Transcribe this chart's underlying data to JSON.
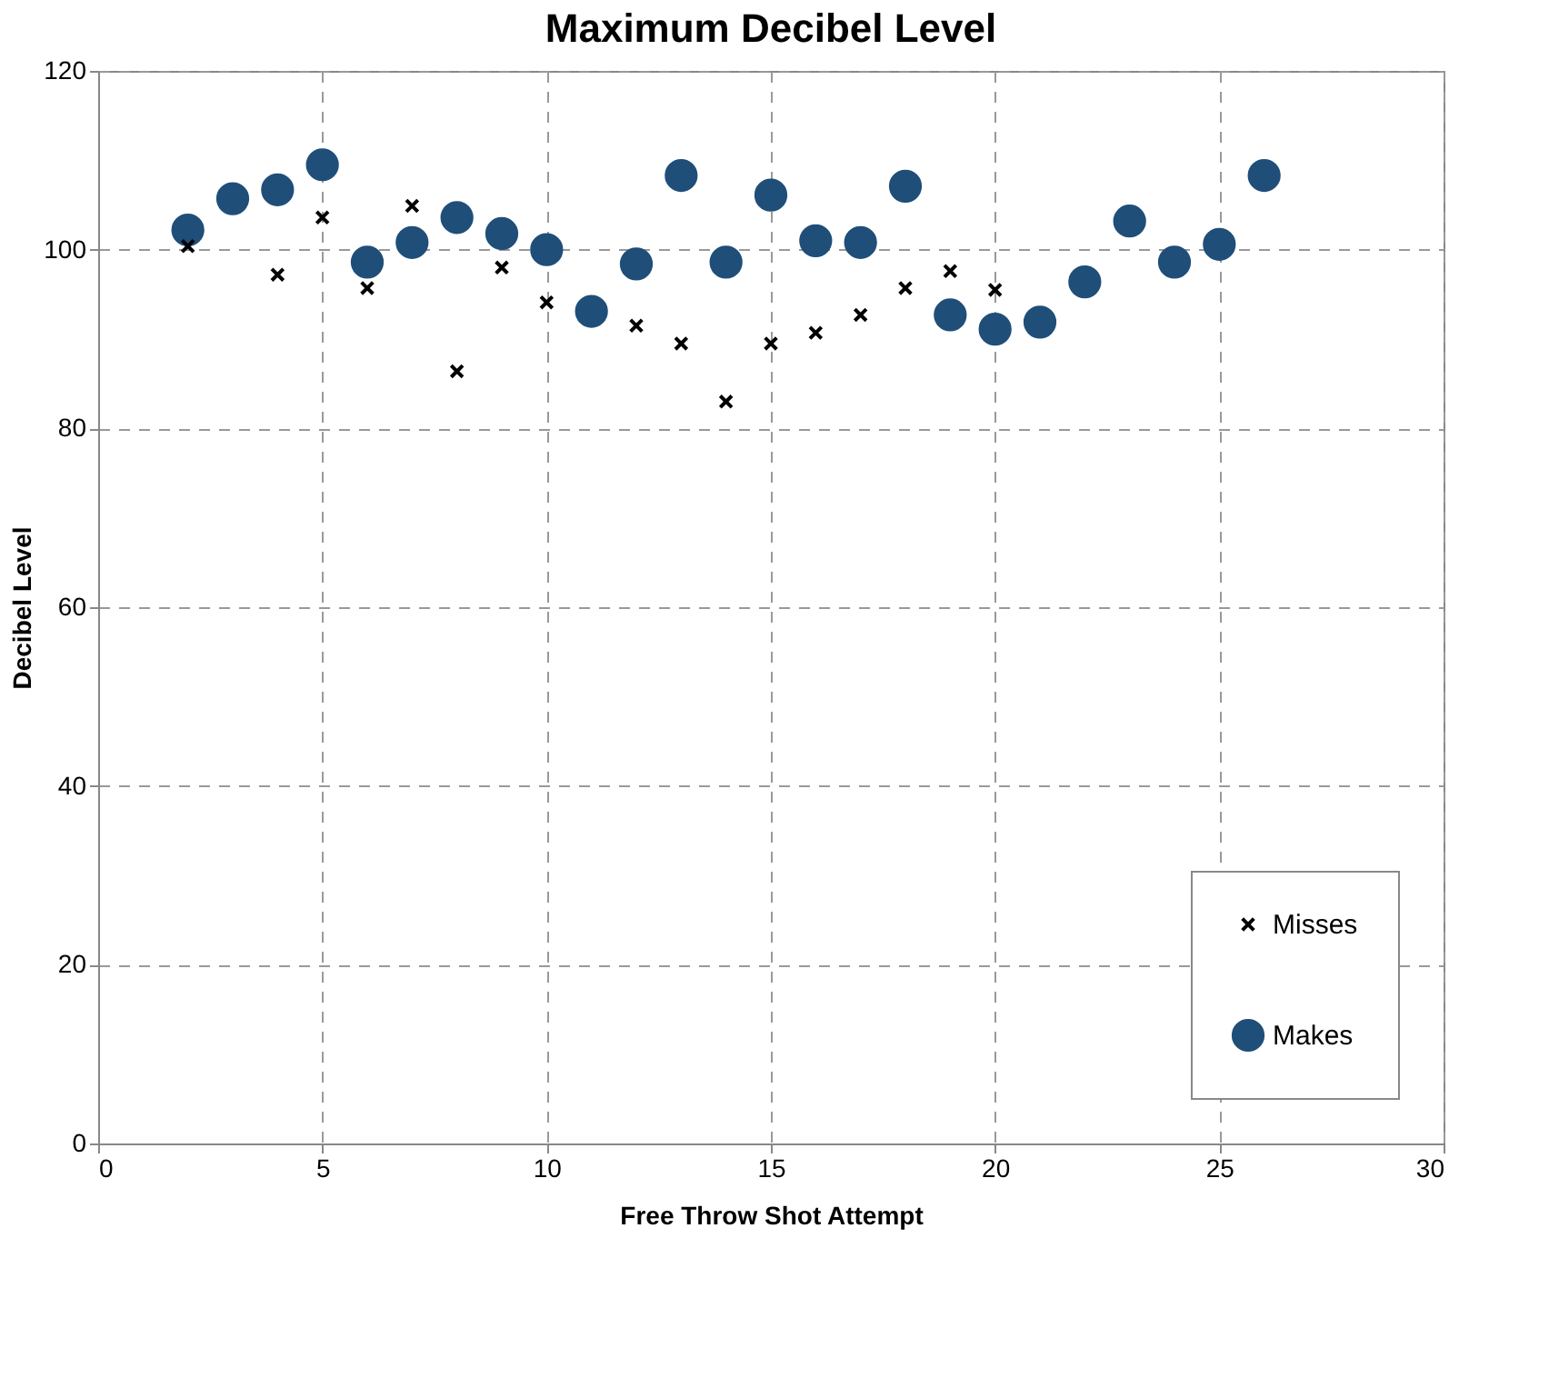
{
  "chart_data": {
    "type": "scatter",
    "title": "Maximum Decibel Level",
    "xlabel": "Free Throw Shot Attempt",
    "ylabel": "Decibel Level",
    "xlim": [
      0,
      30
    ],
    "xticks": [
      0,
      5,
      10,
      15,
      20,
      25,
      30
    ],
    "ylim": [
      0,
      120
    ],
    "yticks": [
      0,
      20,
      40,
      60,
      80,
      100,
      120
    ],
    "grid": true,
    "legend": "bottom right",
    "series": [
      {
        "name": "Misses",
        "color": "#000000",
        "marker": "cross",
        "x": [
          2,
          4,
          5,
          6,
          7,
          8,
          9,
          10,
          12,
          13,
          14,
          15,
          16,
          17,
          18,
          19,
          20
        ],
        "values": [
          100.4,
          97.2,
          103.6,
          95.7,
          104.9,
          86.4,
          98,
          94.1,
          91.5,
          89.5,
          83,
          89.5,
          90.7,
          92.7,
          95.7,
          97.6,
          95.5
        ]
      },
      {
        "name": "Makes",
        "color": "#1f4e79",
        "marker": "circle",
        "x": [
          2,
          3,
          4,
          5,
          6,
          7,
          8,
          9,
          10,
          11,
          12,
          13,
          14,
          15,
          16,
          17,
          18,
          19,
          20,
          21,
          22,
          23,
          24,
          25,
          26
        ],
        "values": [
          102.2,
          105.7,
          106.7,
          109.5,
          98.6,
          100.8,
          103.6,
          101.8,
          100,
          93.1,
          98.4,
          108.3,
          98.6,
          106.1,
          101,
          100.8,
          107.1,
          92.7,
          91.1,
          91.9,
          96.4,
          103.2,
          98.6,
          100.6,
          108.3
        ]
      }
    ]
  }
}
